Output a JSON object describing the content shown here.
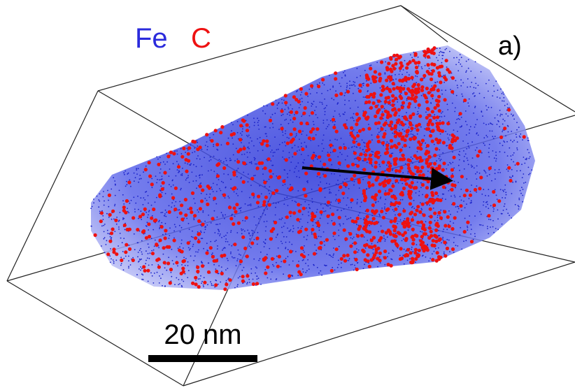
{
  "legend": {
    "fe": "Fe",
    "c": "C"
  },
  "panel_label": "a)",
  "scale_bar": {
    "label": "20 nm"
  }
}
